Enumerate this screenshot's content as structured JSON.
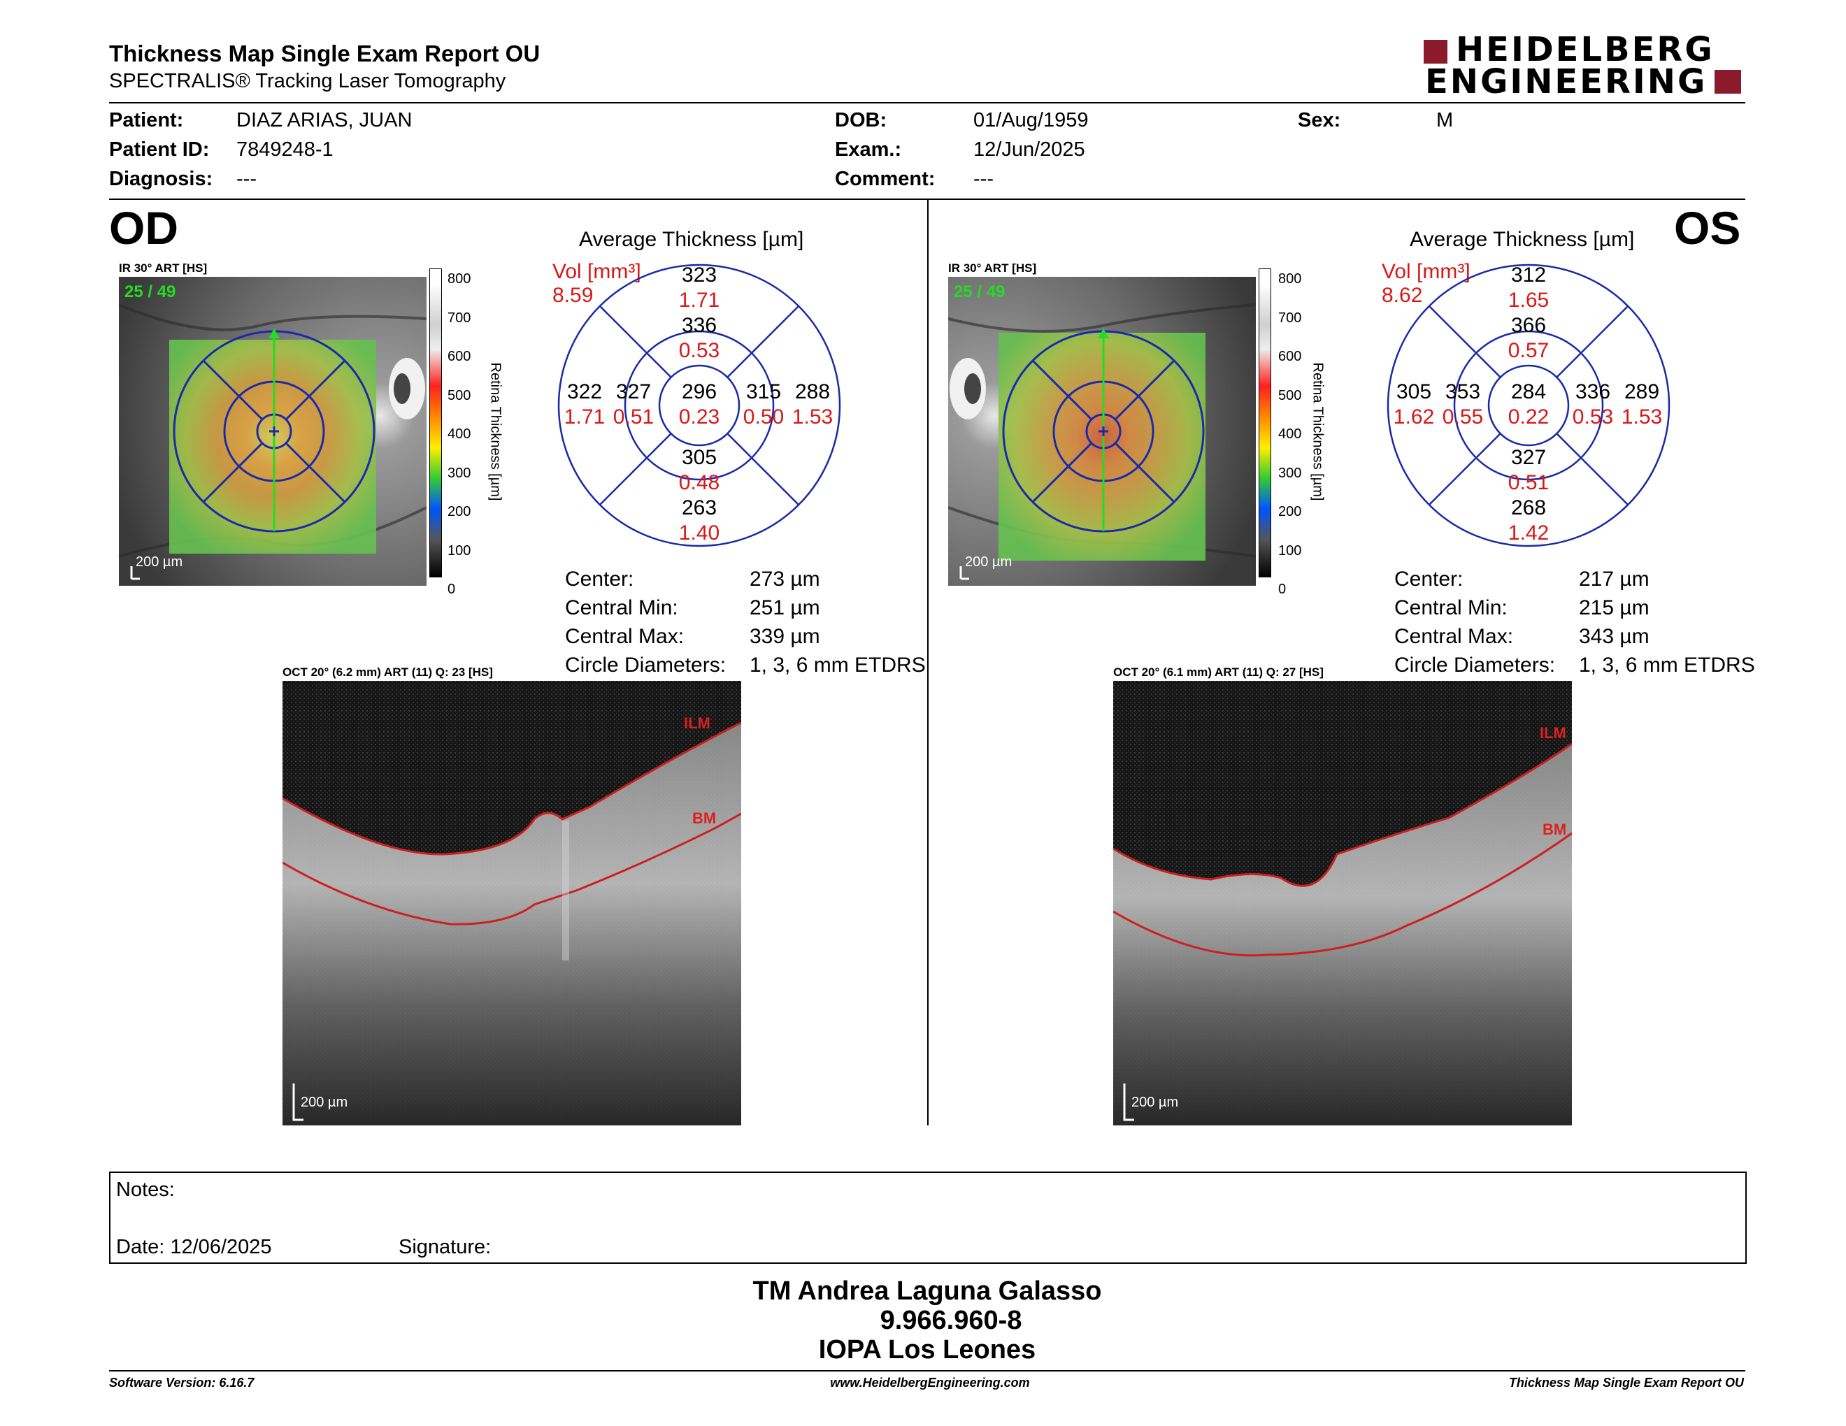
{
  "header": {
    "title": "Thickness Map Single Exam Report OU",
    "subtitle": "SPECTRALIS® Tracking Laser Tomography",
    "logo_line1": "HEIDELBERG",
    "logo_line2": "ENGINEERING"
  },
  "patient": {
    "patient_label": "Patient:",
    "patient_value": "DIAZ ARIAS, JUAN",
    "id_label": "Patient ID:",
    "id_value": "7849248-1",
    "diag_label": "Diagnosis:",
    "diag_value": "---",
    "dob_label": "DOB:",
    "dob_value": "01/Aug/1959",
    "exam_label": "Exam.:",
    "exam_value": "12/Jun/2025",
    "comment_label": "Comment:",
    "comment_value": "---",
    "sex_label": "Sex:",
    "sex_value": "M"
  },
  "od": {
    "eye": "OD",
    "ir_label": "IR 30° ART [HS]",
    "frame": "25 / 49",
    "scale": "200 µm",
    "colorbar_ticks": [
      "800",
      "700",
      "600",
      "500",
      "400",
      "300",
      "200",
      "100",
      "0"
    ],
    "colorbar_title": "Retina  Thickness [µm]",
    "avg_title": "Average Thickness [µm]",
    "vol_label": "Vol [mm³]",
    "vol_value": "8.59",
    "sectors": {
      "sup_outer": [
        "323",
        "1.71"
      ],
      "sup_inner": [
        "336",
        "0.53"
      ],
      "temp_outer": [
        "322",
        "1.71"
      ],
      "temp_inner": [
        "327",
        "0.51"
      ],
      "center": [
        "296",
        "0.23"
      ],
      "nas_inner": [
        "315",
        "0.50"
      ],
      "nas_outer": [
        "288",
        "1.53"
      ],
      "inf_inner": [
        "305",
        "0.48"
      ],
      "inf_outer": [
        "263",
        "1.40"
      ]
    },
    "stats": [
      {
        "label": "Center:",
        "value": "273 µm"
      },
      {
        "label": "Central Min:",
        "value": "251 µm"
      },
      {
        "label": "Central Max:",
        "value": "339 µm"
      },
      {
        "label": "Circle Diameters:",
        "value": "1, 3, 6 mm ETDRS"
      }
    ],
    "oct_label": "OCT 20° (6.2 mm) ART (11) Q: 23 [HS]",
    "ilm": "ILM",
    "bm": "BM",
    "oct_scale": "200 µm"
  },
  "os": {
    "eye": "OS",
    "ir_label": "IR 30° ART [HS]",
    "frame": "25 / 49",
    "scale": "200 µm",
    "colorbar_ticks": [
      "800",
      "700",
      "600",
      "500",
      "400",
      "300",
      "200",
      "100",
      "0"
    ],
    "colorbar_title": "Retina  Thickness [µm]",
    "avg_title": "Average Thickness [µm]",
    "vol_label": "Vol [mm³]",
    "vol_value": "8.62",
    "sectors": {
      "sup_outer": [
        "312",
        "1.65"
      ],
      "sup_inner": [
        "366",
        "0.57"
      ],
      "temp_outer": [
        "305",
        "1.62"
      ],
      "temp_inner": [
        "353",
        "0.55"
      ],
      "center": [
        "284",
        "0.22"
      ],
      "nas_inner": [
        "336",
        "0.53"
      ],
      "nas_outer": [
        "289",
        "1.53"
      ],
      "inf_inner": [
        "327",
        "0.51"
      ],
      "inf_outer": [
        "268",
        "1.42"
      ]
    },
    "stats": [
      {
        "label": "Center:",
        "value": "217 µm"
      },
      {
        "label": "Central Min:",
        "value": "215 µm"
      },
      {
        "label": "Central Max:",
        "value": "343 µm"
      },
      {
        "label": "Circle Diameters:",
        "value": "1, 3, 6 mm ETDRS"
      }
    ],
    "oct_label": "OCT 20° (6.1 mm) ART (11) Q: 27 [HS]",
    "ilm": "ILM",
    "bm": "BM",
    "oct_scale": "200 µm"
  },
  "notes": {
    "notes_label": "Notes:",
    "date_label": "Date: 12/06/2025",
    "signature_label": "Signature:"
  },
  "signature_block": {
    "line1": "TM Andrea Laguna Galasso",
    "line2": "9.966.960-8",
    "line3": "IOPA Los Leones"
  },
  "footer": {
    "left": "Software Version: 6.16.7",
    "center": "www.HeidelbergEngineering.com",
    "right": "Thickness Map Single Exam Report OU"
  },
  "colors": {
    "grid_blue": "#1a2aa8",
    "value_red": "#d81818",
    "frame_green": "#22dd22",
    "logo_red": "#8b1a2b"
  }
}
